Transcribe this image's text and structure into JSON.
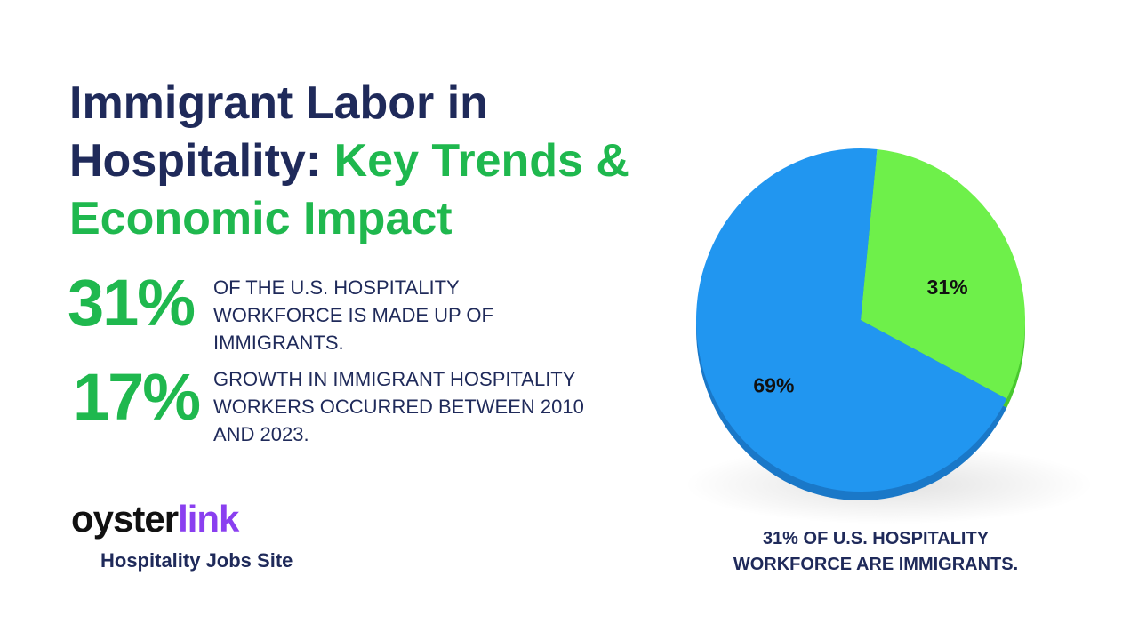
{
  "title": [
    "Immigrant Labor in Hospitality:",
    "Key Trends & Economic Impact"
  ],
  "stats": [
    {
      "figure": "31%",
      "text": "OF THE U.S. HOSPITALITY WORKFORCE IS MADE UP OF IMMIGRANTS."
    },
    {
      "figure": "17%",
      "text": "GROWTH IN IMMIGRANT HOSPITALITY WORKERS OCCURRED BETWEEN 2010 AND 2023."
    }
  ],
  "logo": {
    "name_part1": "oyster",
    "name_part2": "link",
    "tagline": "Hospitality Jobs Site"
  },
  "chart_data": {
    "type": "pie",
    "values": [
      31,
      69
    ],
    "value_labels": [
      "31%",
      "69%"
    ],
    "colors": [
      "#6ef04a",
      "#2196f0"
    ],
    "caption": "31% OF U.S. HOSPITALITY WORKFORCE ARE IMMIGRANTS."
  }
}
